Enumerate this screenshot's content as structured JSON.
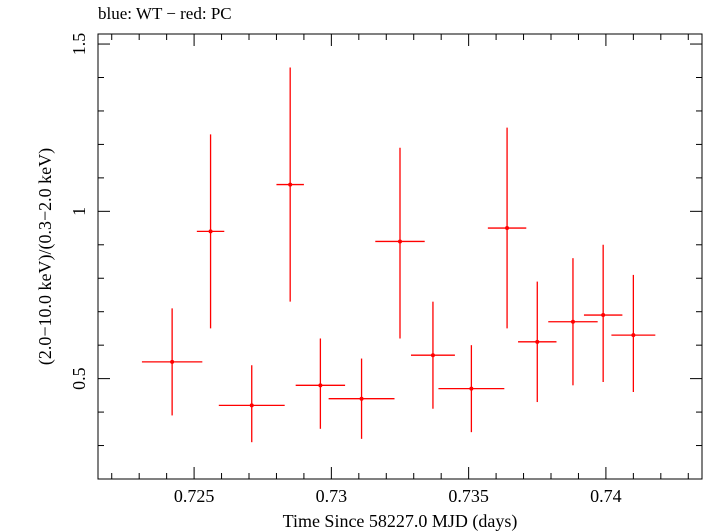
{
  "chart_data": {
    "type": "scatter",
    "title": "blue: WT − red: PC",
    "xlabel": "Time Since 58227.0 MJD (days)",
    "ylabel": "(2.0−10.0 keV)/(0.3−2.0 keV)",
    "xlim": [
      0.7215,
      0.7435
    ],
    "ylim": [
      0.2,
      1.53
    ],
    "y_scale": "linear",
    "x_ticks": [
      0.725,
      0.73,
      0.735,
      0.74
    ],
    "x_tick_labels": [
      "0.725",
      "0.73",
      "0.735",
      "0.74"
    ],
    "y_ticks": [
      0.5,
      1,
      1.5
    ],
    "y_tick_labels": [
      "0.5",
      "1",
      "1.5"
    ],
    "grid": false,
    "series": [
      {
        "color": "#ff0000",
        "points": [
          {
            "x": 0.7242,
            "xerr": 0.0011,
            "y": 0.55,
            "ylo": 0.39,
            "yhi": 0.71
          },
          {
            "x": 0.7256,
            "xerr": 0.0005,
            "y": 0.94,
            "ylo": 0.65,
            "yhi": 1.23
          },
          {
            "x": 0.7271,
            "xerr": 0.0012,
            "y": 0.42,
            "ylo": 0.31,
            "yhi": 0.54
          },
          {
            "x": 0.7285,
            "xerr": 0.0005,
            "y": 1.08,
            "ylo": 0.73,
            "yhi": 1.43
          },
          {
            "x": 0.7296,
            "xerr": 0.0009,
            "y": 0.48,
            "ylo": 0.35,
            "yhi": 0.62
          },
          {
            "x": 0.7311,
            "xerr": 0.0012,
            "y": 0.44,
            "ylo": 0.32,
            "yhi": 0.56
          },
          {
            "x": 0.7325,
            "xerr": 0.0009,
            "y": 0.91,
            "ylo": 0.62,
            "yhi": 1.19
          },
          {
            "x": 0.7337,
            "xerr": 0.0008,
            "y": 0.57,
            "ylo": 0.41,
            "yhi": 0.73
          },
          {
            "x": 0.7351,
            "xerr": 0.0012,
            "y": 0.47,
            "ylo": 0.34,
            "yhi": 0.6
          },
          {
            "x": 0.7364,
            "xerr": 0.0007,
            "y": 0.95,
            "ylo": 0.65,
            "yhi": 1.25
          },
          {
            "x": 0.7375,
            "xerr": 0.0007,
            "y": 0.61,
            "ylo": 0.43,
            "yhi": 0.79
          },
          {
            "x": 0.7388,
            "xerr": 0.0009,
            "y": 0.67,
            "ylo": 0.48,
            "yhi": 0.86
          },
          {
            "x": 0.7399,
            "xerr": 0.0007,
            "y": 0.69,
            "ylo": 0.49,
            "yhi": 0.9
          },
          {
            "x": 0.741,
            "xerr": 0.0008,
            "y": 0.63,
            "ylo": 0.46,
            "yhi": 0.81
          }
        ]
      }
    ]
  }
}
